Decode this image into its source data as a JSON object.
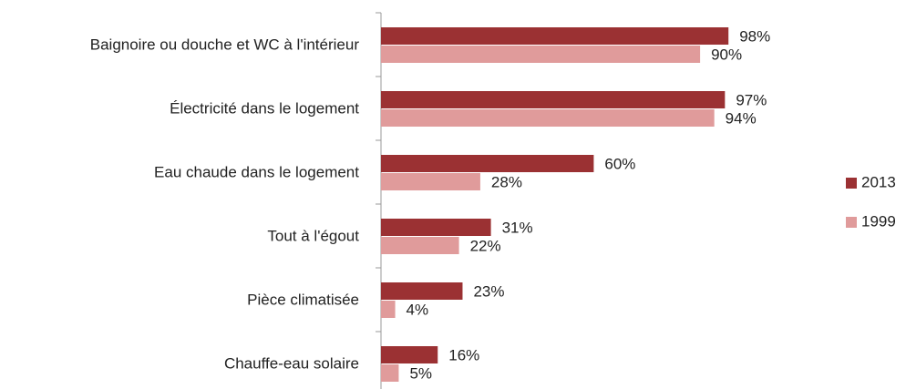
{
  "chart_data": {
    "type": "bar",
    "orientation": "horizontal",
    "categories": [
      "Baignoire ou douche et WC à l'intérieur",
      "Électricité dans le logement",
      "Eau chaude dans le logement",
      "Tout à l'égout",
      "Pièce climatisée",
      "Chauffe-eau solaire"
    ],
    "series": [
      {
        "name": "2013",
        "color": "#9b3133",
        "values": [
          98,
          97,
          60,
          31,
          23,
          16
        ],
        "value_labels": [
          "98%",
          "97%",
          "60%",
          "31%",
          "23%",
          "16%"
        ]
      },
      {
        "name": "1999",
        "color": "#e09b9b",
        "values": [
          90,
          94,
          28,
          22,
          4,
          5
        ],
        "value_labels": [
          "90%",
          "94%",
          "28%",
          "22%",
          "4%",
          "5%"
        ]
      }
    ],
    "xlim": [
      0,
      100
    ],
    "legend": "right"
  }
}
